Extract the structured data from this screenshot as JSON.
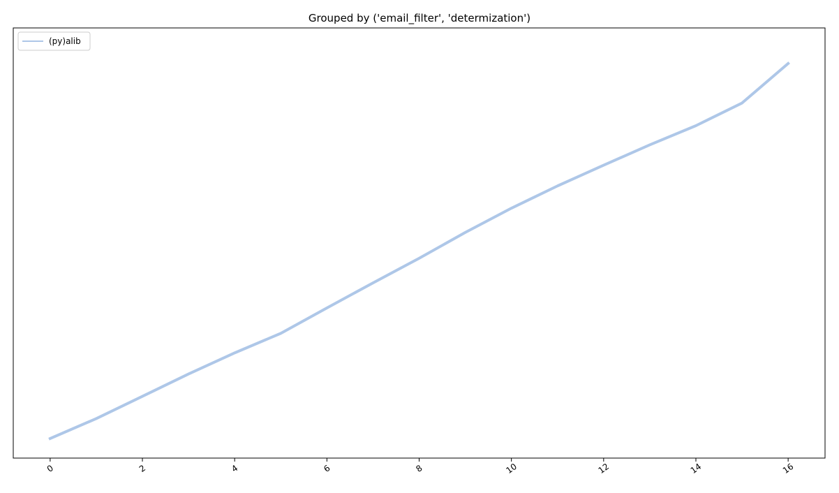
{
  "chart_data": {
    "type": "line",
    "title": "Grouped by ('email_filter', 'determization')",
    "xlabel": "",
    "ylabel": "",
    "x": [
      0,
      1,
      2,
      3,
      4,
      5,
      6,
      7,
      8,
      9,
      10,
      11,
      12,
      13,
      14,
      15,
      16
    ],
    "xticks": [
      "0",
      "2",
      "4",
      "6",
      "8",
      "10",
      "12",
      "14",
      "16"
    ],
    "xtick_values": [
      0,
      2,
      4,
      6,
      8,
      10,
      12,
      14,
      16
    ],
    "xlim": [
      -0.8,
      16.8
    ],
    "ylim": [
      -0.05,
      1.05
    ],
    "yticks_visible": false,
    "grid": false,
    "legend_position": "upper-left",
    "series": [
      {
        "name": "(py)alib",
        "color": "#aec7e8",
        "values": [
          0.0,
          0.051,
          0.108,
          0.165,
          0.219,
          0.269,
          0.334,
          0.398,
          0.461,
          0.527,
          0.589,
          0.646,
          0.699,
          0.751,
          0.8,
          0.858,
          0.959
        ]
      }
    ]
  }
}
